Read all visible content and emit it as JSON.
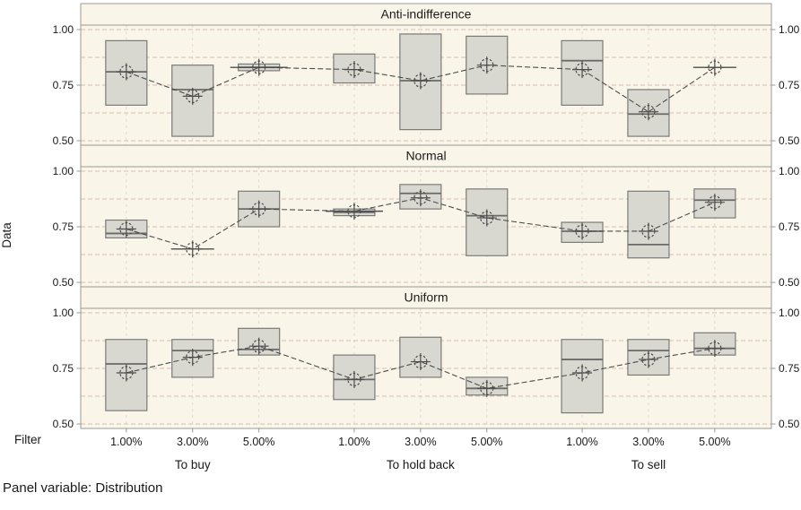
{
  "chart_data": {
    "type": "boxplot",
    "title": "",
    "ylabel": "Data",
    "xlabel": "Filter",
    "footer": "Panel variable: Distribution",
    "y_ticks": [
      "1.00",
      "0.75",
      "0.50"
    ],
    "y_tick_values": [
      1.0,
      0.75,
      0.5
    ],
    "y_minor_grid_values": [
      0.875,
      0.625
    ],
    "ylim": [
      0.48,
      1.02
    ],
    "grid": true,
    "x_categories": [
      "1.00%",
      "3.00%",
      "5.00%",
      "1.00%",
      "3.00%",
      "5.00%",
      "1.00%",
      "3.00%",
      "5.00%"
    ],
    "x_groups": [
      "To buy",
      "To hold back",
      "To sell"
    ],
    "panel_variable": "Distribution",
    "panels": [
      {
        "title": "Anti-indifference",
        "points": [
          {
            "box": [
              0.66,
              0.95
            ],
            "median": 0.81,
            "mean": 0.81,
            "whisker": false
          },
          {
            "box": [
              0.52,
              0.84
            ],
            "median": 0.73,
            "mean": 0.7,
            "whisker": false
          },
          {
            "box": [
              0.815,
              0.845
            ],
            "median": 0.83,
            "mean": 0.83,
            "whisker": true
          },
          {
            "box": [
              0.76,
              0.89
            ],
            "median": null,
            "mean": 0.82,
            "whisker": false
          },
          {
            "box": [
              0.55,
              0.98
            ],
            "median": 0.77,
            "mean": 0.77,
            "whisker": false
          },
          {
            "box": [
              0.71,
              0.97
            ],
            "median": null,
            "mean": 0.84,
            "whisker": false
          },
          {
            "box": [
              0.66,
              0.95
            ],
            "median": 0.86,
            "mean": 0.82,
            "whisker": false
          },
          {
            "box": [
              0.52,
              0.73
            ],
            "median": 0.62,
            "mean": 0.63,
            "whisker": false
          },
          {
            "box": null,
            "median": null,
            "mean": 0.83,
            "whisker": true
          }
        ]
      },
      {
        "title": "Normal",
        "points": [
          {
            "box": [
              0.7,
              0.78
            ],
            "median": 0.72,
            "mean": 0.74,
            "whisker": false
          },
          {
            "box": null,
            "median": null,
            "mean": 0.65,
            "whisker": true
          },
          {
            "box": [
              0.75,
              0.91
            ],
            "median": 0.83,
            "mean": 0.83,
            "whisker": false
          },
          {
            "box": [
              0.8,
              0.83
            ],
            "median": 0.815,
            "mean": 0.82,
            "whisker": true
          },
          {
            "box": [
              0.83,
              0.94
            ],
            "median": 0.9,
            "mean": 0.88,
            "whisker": false
          },
          {
            "box": [
              0.62,
              0.92
            ],
            "median": 0.8,
            "mean": 0.79,
            "whisker": false
          },
          {
            "box": [
              0.68,
              0.77
            ],
            "median": 0.73,
            "mean": 0.73,
            "whisker": false
          },
          {
            "box": [
              0.61,
              0.91
            ],
            "median": 0.67,
            "mean": 0.73,
            "whisker": false
          },
          {
            "box": [
              0.79,
              0.92
            ],
            "median": 0.87,
            "mean": 0.86,
            "whisker": false
          }
        ]
      },
      {
        "title": "Uniform",
        "points": [
          {
            "box": [
              0.56,
              0.88
            ],
            "median": 0.77,
            "mean": 0.73,
            "whisker": false
          },
          {
            "box": [
              0.71,
              0.88
            ],
            "median": 0.83,
            "mean": 0.8,
            "whisker": false
          },
          {
            "box": [
              0.81,
              0.93
            ],
            "median": 0.835,
            "mean": 0.85,
            "whisker": false
          },
          {
            "box": [
              0.61,
              0.81
            ],
            "median": 0.7,
            "mean": 0.7,
            "whisker": false
          },
          {
            "box": [
              0.71,
              0.89
            ],
            "median": null,
            "mean": 0.78,
            "whisker": false
          },
          {
            "box": [
              0.63,
              0.71
            ],
            "median": 0.66,
            "mean": 0.66,
            "whisker": false
          },
          {
            "box": [
              0.55,
              0.88
            ],
            "median": 0.79,
            "mean": 0.73,
            "whisker": false
          },
          {
            "box": [
              0.72,
              0.88
            ],
            "median": 0.83,
            "mean": 0.79,
            "whisker": false
          },
          {
            "box": [
              0.81,
              0.91
            ],
            "median": 0.84,
            "mean": 0.84,
            "whisker": false
          }
        ]
      }
    ],
    "colors": {
      "plot_bg": "#f9f6e9",
      "box_fill": "#d9d8d0",
      "box_stroke": "#7a7a78",
      "median": "#6a6a68",
      "grid_h": "#ddb9ae",
      "grid_v": "#e8d5ca",
      "axis": "#9a9a92",
      "marker": "#4c4c4c",
      "text": "#1a1a1a"
    }
  }
}
